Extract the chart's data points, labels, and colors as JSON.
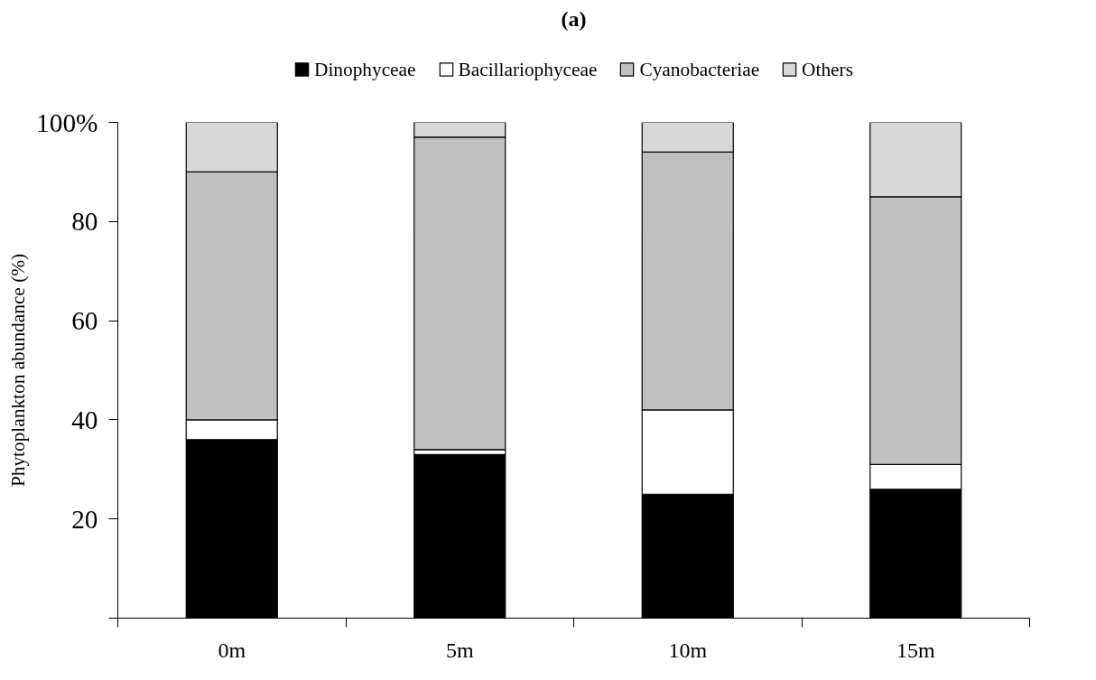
{
  "chart_data": {
    "type": "bar",
    "title": "(a)",
    "ylabel": "Phytoplankton abundance (%)",
    "categories": [
      "0m",
      "5m",
      "10m",
      "15m"
    ],
    "stacked": true,
    "series": [
      {
        "name": "Dinophyceae",
        "color": "#000000",
        "values": [
          36,
          33,
          25,
          26
        ]
      },
      {
        "name": "Bacillariophyceae",
        "color": "#ffffff",
        "values": [
          4,
          1,
          17,
          5
        ]
      },
      {
        "name": "Cyanobacteriae",
        "color": "#c0c0c0",
        "values": [
          50,
          63,
          52,
          54
        ]
      },
      {
        "name": "Others",
        "color": "#d8d8d8",
        "values": [
          10,
          3,
          6,
          15
        ]
      }
    ],
    "ylim": [
      0,
      100
    ],
    "yticks": [
      {
        "value": 0,
        "label": null
      },
      20,
      40,
      60,
      80,
      {
        "value": 100,
        "label": "100%"
      }
    ],
    "grid": false,
    "legend": "top"
  }
}
